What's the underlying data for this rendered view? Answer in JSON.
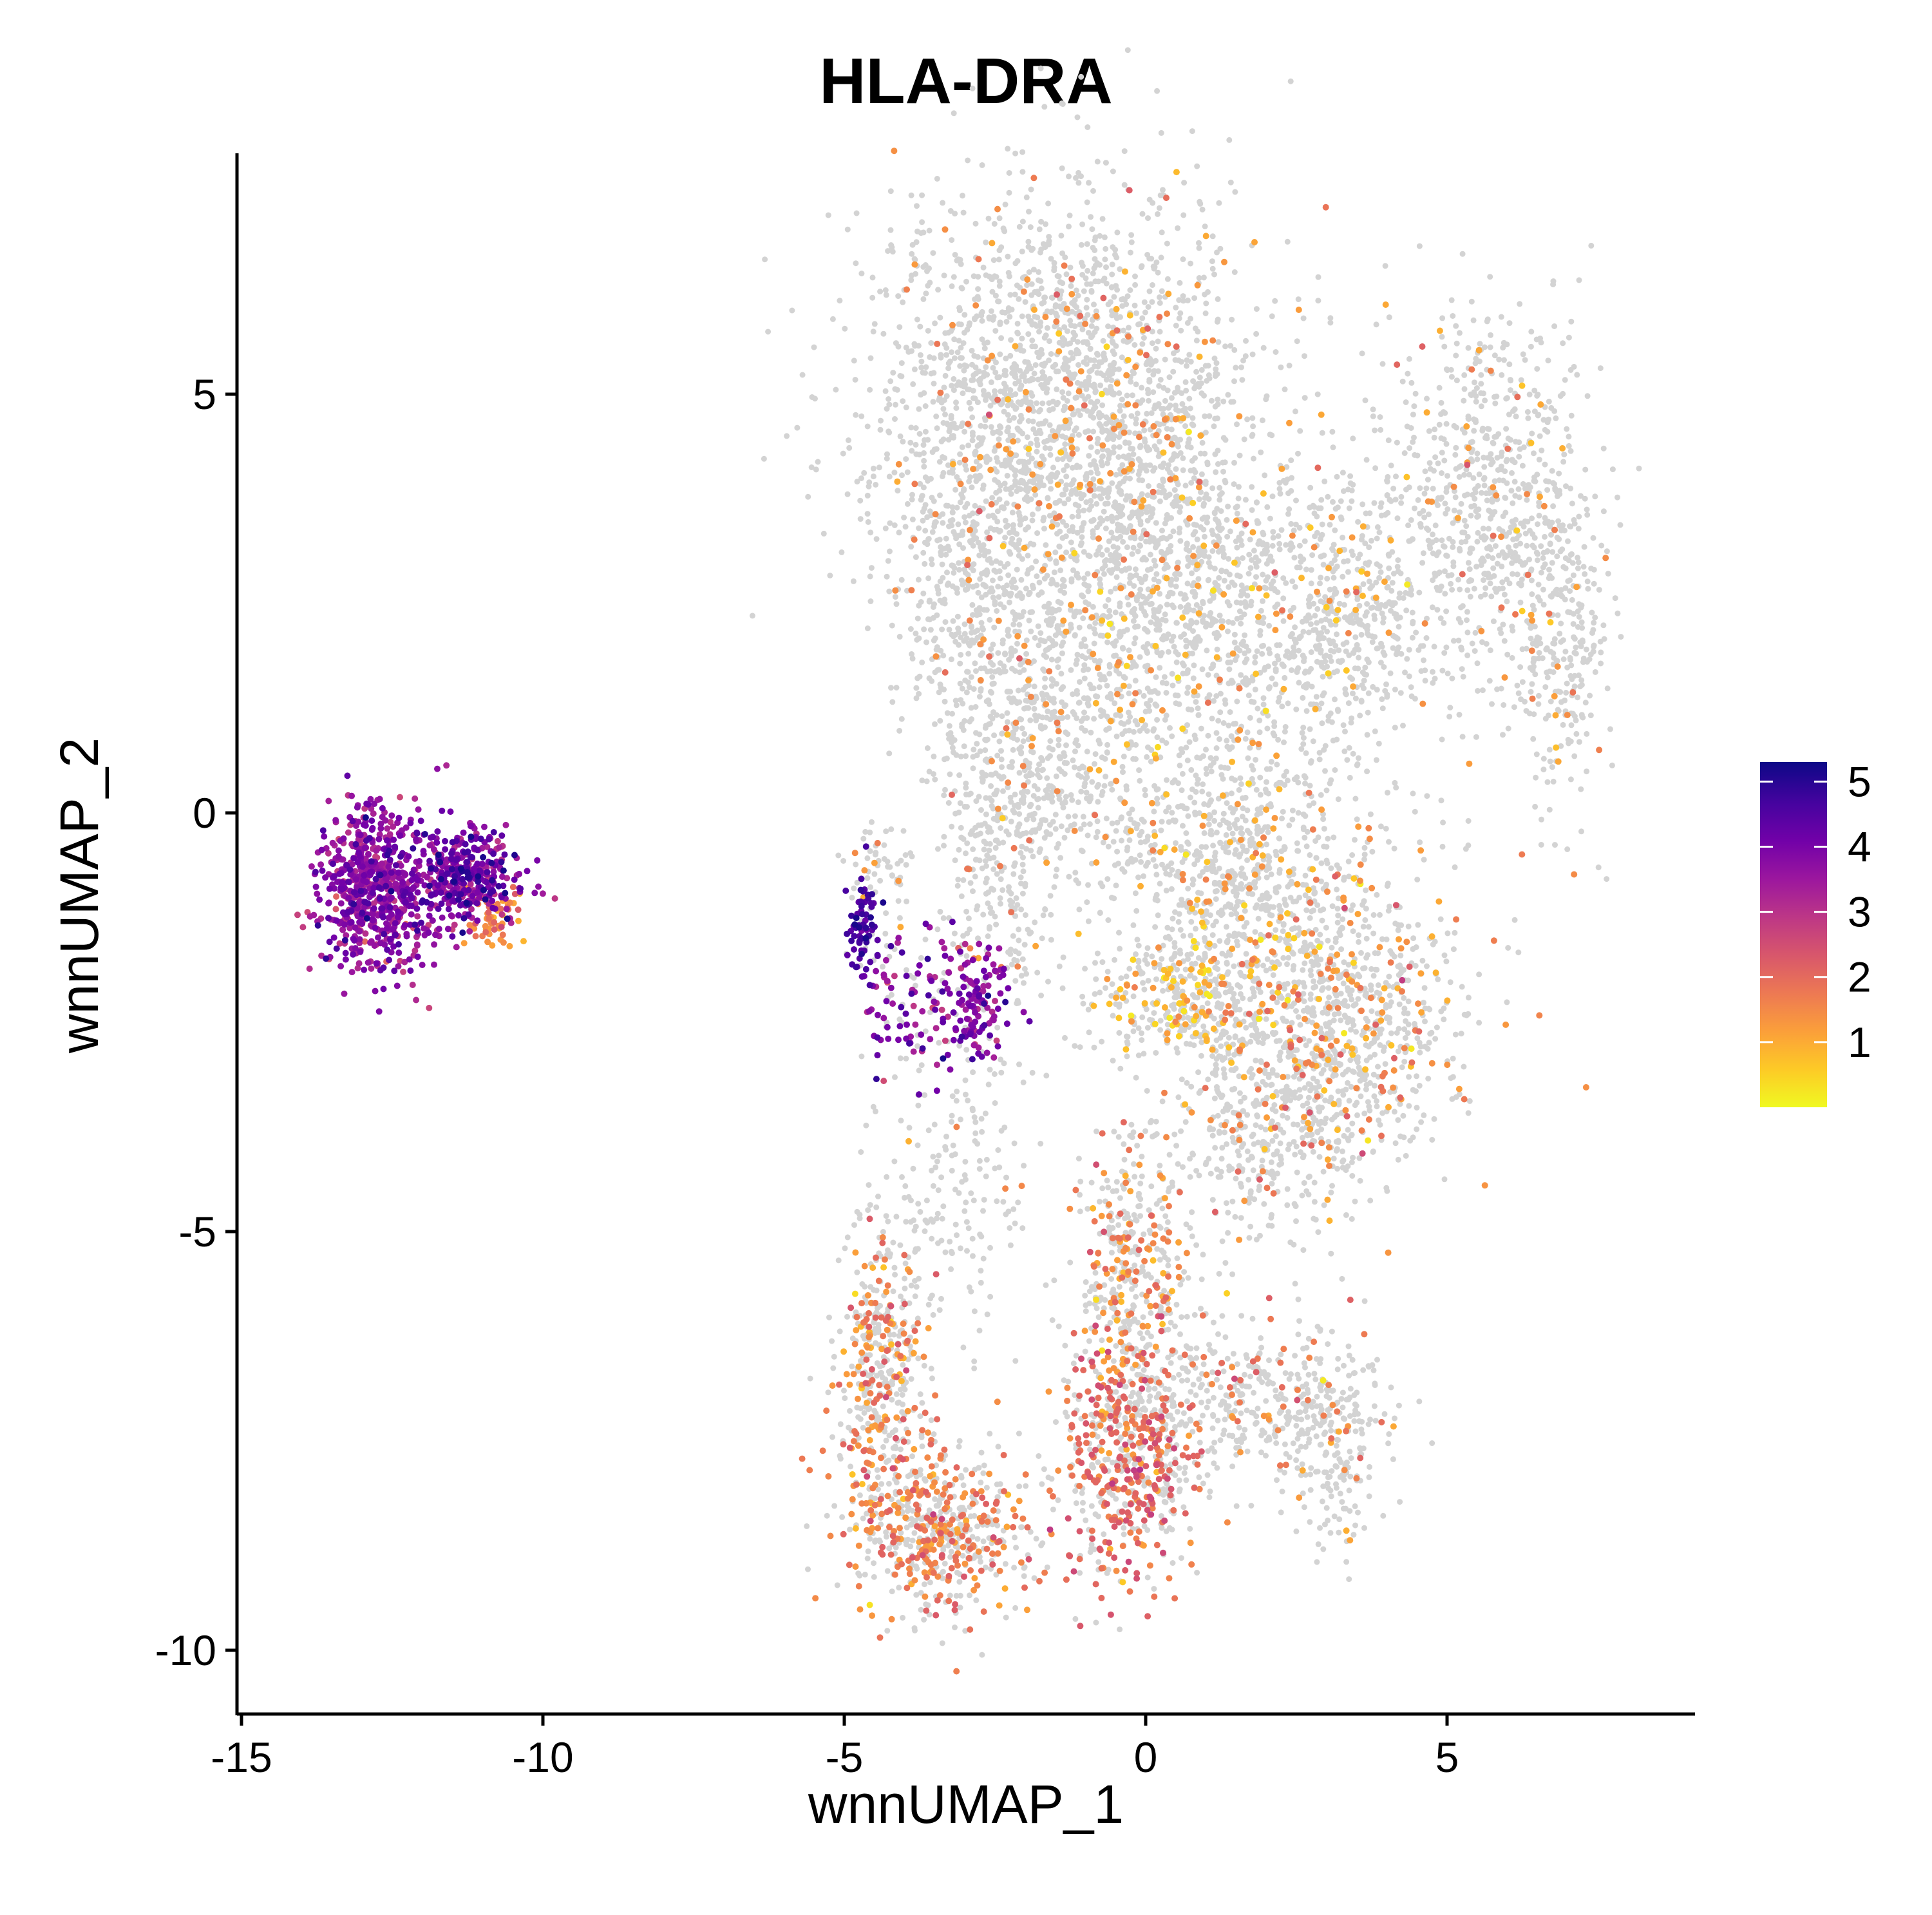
{
  "chart_data": {
    "type": "scatter",
    "title": "HLA-DRA",
    "xlabel": "wnnUMAP_1",
    "ylabel": "wnnUMAP_2",
    "xlim": [
      -15.1,
      9.0
    ],
    "ylim": [
      -10.8,
      7.9
    ],
    "x_ticks": [
      -15,
      -10,
      -5,
      0,
      5
    ],
    "y_ticks": [
      -10,
      -5,
      0,
      5
    ],
    "x_tick_labels": [
      "-15",
      "-10",
      "-5",
      "0",
      "5"
    ],
    "y_tick_labels": [
      "-10",
      "-5",
      "0",
      "5"
    ],
    "grid": false,
    "background_point_color": "#d3d3d3",
    "colorbar": {
      "label": "",
      "range": [
        0,
        5.3
      ],
      "ticks": [
        1,
        2,
        3,
        4,
        5
      ],
      "tick_labels": [
        "1",
        "2",
        "3",
        "4",
        "5"
      ],
      "colormap": "plasma (reversed)",
      "colors": [
        "#f0f921",
        "#fdca26",
        "#fb9f3a",
        "#ed7953",
        "#d8576b",
        "#bd3786",
        "#9c179e",
        "#7201a8",
        "#46039f",
        "#0d0887"
      ],
      "placement": "right"
    },
    "clusters": [
      {
        "name": "",
        "cx": -12.8,
        "cy": -0.9,
        "sx": 0.45,
        "sy": 0.5,
        "n": 650,
        "expr_mean": 3.7,
        "expr_sd": 0.5,
        "frac_expr": 1.0
      },
      {
        "name": "",
        "cx": -11.3,
        "cy": -0.75,
        "sx": 0.45,
        "sy": 0.3,
        "n": 380,
        "expr_mean": 3.9,
        "expr_sd": 0.7,
        "frac_expr": 1.0
      },
      {
        "name": "",
        "cx": -10.8,
        "cy": -1.2,
        "sx": 0.2,
        "sy": 0.2,
        "n": 60,
        "expr_mean": 1.4,
        "expr_sd": 0.5,
        "frac_expr": 1.0
      },
      {
        "name": "",
        "cx": -4.7,
        "cy": -1.4,
        "sx": 0.12,
        "sy": 0.3,
        "n": 70,
        "expr_mean": 4.6,
        "expr_sd": 0.3,
        "frac_expr": 0.95
      },
      {
        "name": "",
        "cx": -3.9,
        "cy": -2.2,
        "sx": 0.55,
        "sy": 0.4,
        "n": 120,
        "expr_mean": 3.9,
        "expr_sd": 0.6,
        "frac_expr": 0.8
      },
      {
        "name": "",
        "cx": -2.8,
        "cy": -2.3,
        "sx": 0.3,
        "sy": 0.4,
        "n": 120,
        "expr_mean": 3.8,
        "expr_sd": 0.5,
        "frac_expr": 0.9
      },
      {
        "name": "",
        "cx": -1.4,
        "cy": 4.8,
        "sx": 1.6,
        "sy": 1.3,
        "n": 2200,
        "expr_mean": 1.4,
        "expr_sd": 0.4,
        "frac_expr": 0.08
      },
      {
        "name": "",
        "cx": 0.5,
        "cy": 2.5,
        "sx": 1.1,
        "sy": 1.1,
        "n": 900,
        "expr_mean": 1.1,
        "expr_sd": 0.4,
        "frac_expr": 0.1
      },
      {
        "name": "",
        "cx": 5.7,
        "cy": 3.7,
        "sx": 0.8,
        "sy": 1.1,
        "n": 700,
        "expr_mean": 1.4,
        "expr_sd": 0.4,
        "frac_expr": 0.07
      },
      {
        "name": "",
        "cx": 6.9,
        "cy": 2.0,
        "sx": 0.35,
        "sy": 1.0,
        "n": 250,
        "expr_mean": 1.3,
        "expr_sd": 0.4,
        "frac_expr": 0.06
      },
      {
        "name": "",
        "cx": 3.2,
        "cy": 2.4,
        "sx": 0.9,
        "sy": 0.8,
        "n": 600,
        "expr_mean": 1.0,
        "expr_sd": 0.4,
        "frac_expr": 0.06
      },
      {
        "name": "",
        "cx": -1.4,
        "cy": 1.0,
        "sx": 0.8,
        "sy": 1.0,
        "n": 500,
        "expr_mean": 1.4,
        "expr_sd": 0.4,
        "frac_expr": 0.04
      },
      {
        "name": "",
        "cx": -3.0,
        "cy": 2.5,
        "sx": 0.55,
        "sy": 1.0,
        "n": 350,
        "expr_mean": 1.6,
        "expr_sd": 0.4,
        "frac_expr": 0.05
      },
      {
        "name": "",
        "cx": 1.5,
        "cy": -0.5,
        "sx": 1.0,
        "sy": 0.8,
        "n": 650,
        "expr_mean": 1.2,
        "expr_sd": 0.4,
        "frac_expr": 0.1
      },
      {
        "name": "",
        "cx": 3.2,
        "cy": -2.3,
        "sx": 1.1,
        "sy": 0.9,
        "n": 900,
        "expr_mean": 1.5,
        "expr_sd": 0.5,
        "frac_expr": 0.2
      },
      {
        "name": "",
        "cx": 0.6,
        "cy": -2.2,
        "sx": 0.8,
        "sy": 0.4,
        "n": 350,
        "expr_mean": 0.8,
        "expr_sd": 0.4,
        "frac_expr": 0.25
      },
      {
        "name": "",
        "cx": 2.2,
        "cy": -3.7,
        "sx": 0.9,
        "sy": 0.7,
        "n": 450,
        "expr_mean": 1.5,
        "expr_sd": 0.5,
        "frac_expr": 0.12
      },
      {
        "name": "",
        "cx": -0.2,
        "cy": -5.6,
        "sx": 0.5,
        "sy": 0.9,
        "n": 450,
        "expr_mean": 1.6,
        "expr_sd": 0.5,
        "frac_expr": 0.35
      },
      {
        "name": "",
        "cx": -0.3,
        "cy": -7.8,
        "sx": 0.6,
        "sy": 0.7,
        "n": 550,
        "expr_mean": 2.0,
        "expr_sd": 0.4,
        "frac_expr": 0.5
      },
      {
        "name": "",
        "cx": 1.6,
        "cy": -7.0,
        "sx": 1.0,
        "sy": 0.45,
        "n": 350,
        "expr_mean": 1.6,
        "expr_sd": 0.4,
        "frac_expr": 0.12
      },
      {
        "name": "",
        "cx": 3.1,
        "cy": -7.6,
        "sx": 0.4,
        "sy": 0.55,
        "n": 200,
        "expr_mean": 1.4,
        "expr_sd": 0.4,
        "frac_expr": 0.1
      },
      {
        "name": "",
        "cx": -4.4,
        "cy": -6.6,
        "sx": 0.35,
        "sy": 1.0,
        "n": 450,
        "expr_mean": 1.6,
        "expr_sd": 0.5,
        "frac_expr": 0.35
      },
      {
        "name": "",
        "cx": -3.4,
        "cy": -8.6,
        "sx": 0.75,
        "sy": 0.55,
        "n": 550,
        "expr_mean": 1.7,
        "expr_sd": 0.4,
        "frac_expr": 0.45
      },
      {
        "name": "",
        "cx": -3.1,
        "cy": -4.3,
        "sx": 0.6,
        "sy": 1.0,
        "n": 150,
        "expr_mean": 1.5,
        "expr_sd": 0.4,
        "frac_expr": 0.05
      },
      {
        "name": "",
        "cx": -2.4,
        "cy": -0.6,
        "sx": 0.5,
        "sy": 1.0,
        "n": 300,
        "expr_mean": 1.5,
        "expr_sd": 0.4,
        "frac_expr": 0.08
      },
      {
        "name": "",
        "cx": -4.4,
        "cy": -0.7,
        "sx": 0.3,
        "sy": 0.3,
        "n": 60,
        "expr_mean": 1.5,
        "expr_sd": 0.4,
        "frac_expr": 0.15
      }
    ]
  }
}
